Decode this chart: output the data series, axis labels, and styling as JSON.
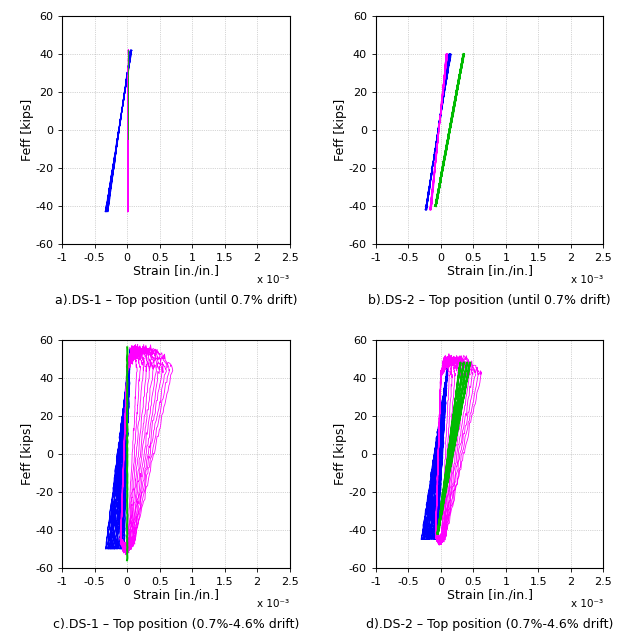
{
  "titles": [
    "a).DS-1 – Top position (until 0.7% drift)",
    "b).DS-2 – Top position (until 0.7% drift)",
    "c).DS-1 – Top position (0.7%-4.6% drift)",
    "d).DS-2 – Top position (0.7%-4.6% drift)"
  ],
  "xlabel": "Strain [in./in.]",
  "ylabel": "Feff [kips]",
  "xlim": [
    -1.0,
    2.5
  ],
  "ylim": [
    -60,
    60
  ],
  "xticks": [
    -1.0,
    -0.5,
    0.0,
    0.5,
    1.0,
    1.5,
    2.0,
    2.5
  ],
  "xtick_labels": [
    "-1",
    "-0.5",
    "0",
    "0.5",
    "1",
    "1.5",
    "2",
    "2.5"
  ],
  "yticks": [
    -60,
    -40,
    -20,
    0,
    20,
    40,
    60
  ],
  "colors": {
    "blue": "#0000FF",
    "magenta": "#FF00FF",
    "green": "#00BB00"
  },
  "background": "#FFFFFF",
  "grid_color": "#999999",
  "title_fontsize": 9,
  "axis_label_fontsize": 9,
  "tick_fontsize": 8,
  "x_scale_label": "x 10⁻³"
}
